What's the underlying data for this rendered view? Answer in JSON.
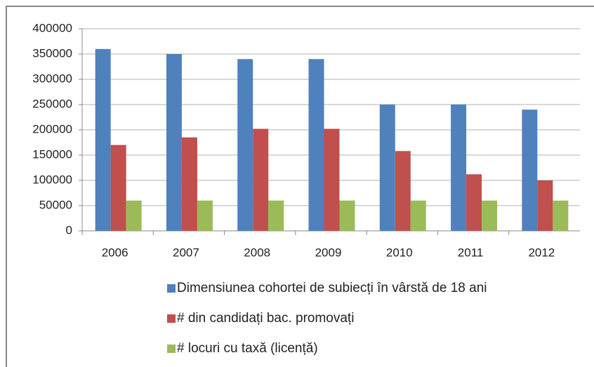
{
  "chart_data": {
    "type": "bar",
    "categories": [
      "2006",
      "2007",
      "2008",
      "2009",
      "2010",
      "2011",
      "2012"
    ],
    "series": [
      {
        "name": "Dimensiunea cohortei de subiecți în vârstă de 18 ani",
        "color": "#4f81bd",
        "values": [
          360000,
          350000,
          340000,
          340000,
          250000,
          250000,
          240000
        ]
      },
      {
        "name": "# din candidați bac. promovați",
        "color": "#c0504d",
        "values": [
          170000,
          185000,
          202000,
          202000,
          158000,
          112000,
          100000
        ]
      },
      {
        "name": "# locuri cu taxă (licență)",
        "color": "#9bbb59",
        "values": [
          60000,
          60000,
          60000,
          60000,
          60000,
          60000,
          60000
        ]
      }
    ],
    "ylim": [
      0,
      400000
    ],
    "yticks": [
      0,
      50000,
      100000,
      150000,
      200000,
      250000,
      300000,
      350000,
      400000
    ],
    "grid": true
  }
}
